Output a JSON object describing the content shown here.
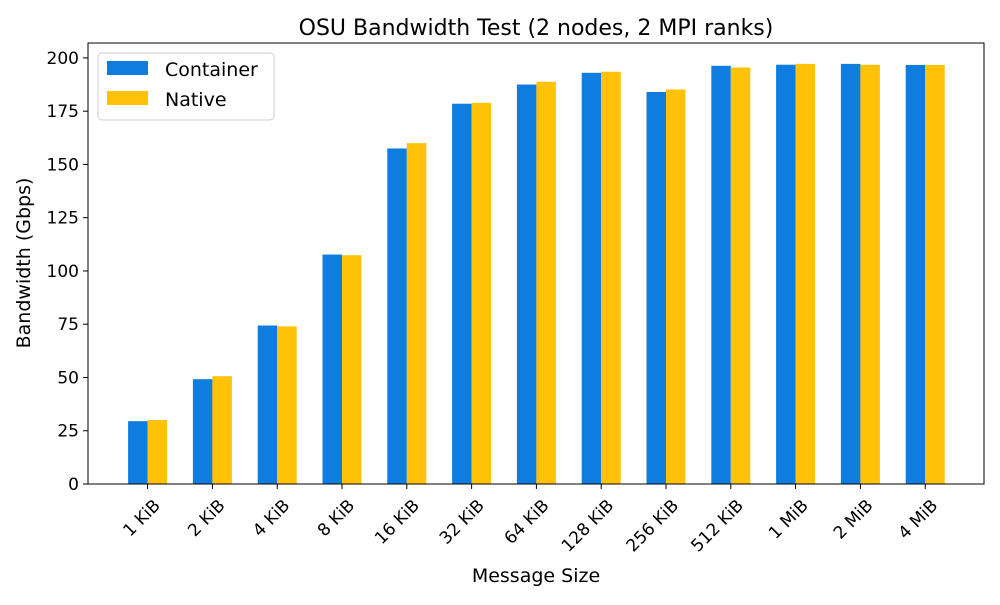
{
  "chart_data": {
    "type": "bar",
    "title": "OSU Bandwidth Test (2 nodes, 2 MPI ranks)",
    "xlabel": "Message Size",
    "ylabel": "Bandwidth (Gbps)",
    "categories": [
      "1 KiB",
      "2 KiB",
      "4 KiB",
      "8 KiB",
      "16 KiB",
      "32 KiB",
      "64 KiB",
      "128 KiB",
      "256 KiB",
      "512 KiB",
      "1 MiB",
      "2 MiB",
      "4 MiB"
    ],
    "series": [
      {
        "name": "Container",
        "color": "#0f7ddf",
        "values": [
          29.5,
          49.2,
          74.4,
          107.7,
          157.5,
          178.5,
          187.5,
          193.0,
          184.0,
          196.3,
          196.8,
          197.2,
          196.7
        ]
      },
      {
        "name": "Native",
        "color": "#ffc208",
        "values": [
          30.0,
          50.6,
          74.0,
          107.4,
          160.0,
          178.9,
          188.8,
          193.5,
          185.2,
          195.5,
          197.2,
          196.8,
          196.7
        ]
      }
    ],
    "ylim": [
      0,
      207
    ],
    "yticks": [
      0,
      25,
      50,
      75,
      100,
      125,
      150,
      175,
      200
    ],
    "legend_position": "top-left",
    "grid": false
  }
}
